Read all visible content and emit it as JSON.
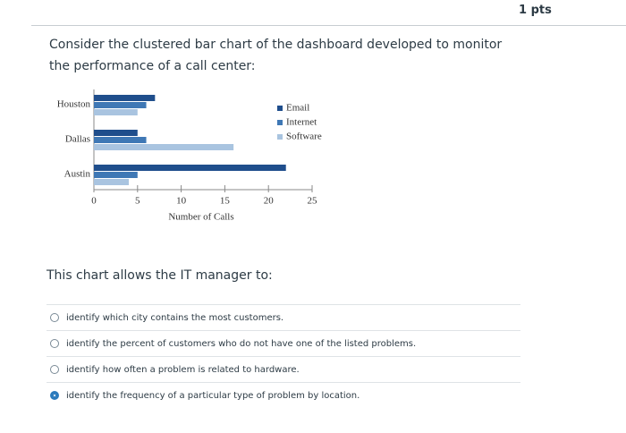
{
  "header": {
    "points": "1 pts"
  },
  "question": {
    "text": "Consider the clustered bar chart of the dashboard developed to monitor the performance of a call center:",
    "prompt": "This chart allows the IT manager to:"
  },
  "chart_data": {
    "type": "hbar",
    "categories": [
      "Houston",
      "Dallas",
      "Austin"
    ],
    "series": [
      {
        "name": "Email",
        "color": "#1f4e8c",
        "values": [
          7,
          5,
          22
        ]
      },
      {
        "name": "Internet",
        "color": "#3f78b5",
        "values": [
          6,
          6,
          5
        ]
      },
      {
        "name": "Software",
        "color": "#a9c4e0",
        "values": [
          5,
          16,
          4
        ]
      }
    ],
    "xlabel": "Number of Calls",
    "xlim": [
      0,
      25
    ],
    "xticks": [
      0,
      5,
      10,
      15,
      20,
      25
    ]
  },
  "options": [
    {
      "text": "identify which city contains the most customers.",
      "selected": false
    },
    {
      "text": "identify the percent of customers who do not have one of the listed problems.",
      "selected": false
    },
    {
      "text": "identify how often a problem is related to hardware.",
      "selected": false
    },
    {
      "text": "identify the frequency of a particular type of problem by location.",
      "selected": true
    }
  ]
}
